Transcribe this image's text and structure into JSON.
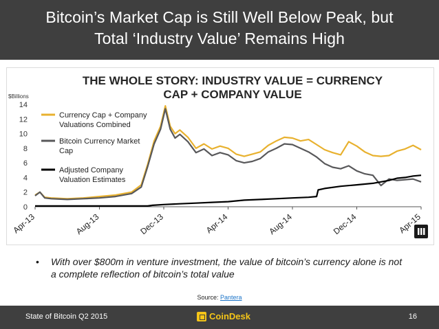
{
  "slide": {
    "title_line1": "Bitcoin’s Market Cap is Still Well Below Peak, but",
    "title_line2": "Total ‘Industry Value’ Remains High",
    "bullet": "With over $800m in venture investment, the value of bitcoin’s currency alone is not a complete reflection of bitcoin’s total value",
    "source_label": "Source:",
    "source_link": "Pantera",
    "footer_left": "State of Bitcoin Q2 2015",
    "footer_brand": "CoinDesk",
    "page_number": "16",
    "watermark": "Pantera logo"
  },
  "chart_data": {
    "type": "line",
    "title_line1": "THE WHOLE STORY: INDUSTRY VALUE = CURRENCY",
    "title_line2": "CAP + COMPANY VALUE",
    "ylabel": "$Billions",
    "ylim": [
      0,
      14
    ],
    "yticks": [
      "14",
      "12",
      "10",
      "8",
      "6",
      "4",
      "2",
      "0"
    ],
    "xlim": [
      0,
      24
    ],
    "x_tick_labels": [
      "Apr-13",
      "Aug-13",
      "Dec-13",
      "Apr-14",
      "Aug-14",
      "Dec-14",
      "Apr-15"
    ],
    "x_tick_positions": [
      0,
      4,
      8,
      12,
      16,
      20,
      24
    ],
    "legend": [
      {
        "label_line1": "Currency Cap + Company",
        "label_line2": "Valuations Combined",
        "color": "#e8b12e"
      },
      {
        "label_line1": "Bitcoin Currency Market",
        "label_line2": "Cap",
        "color": "#58585a"
      },
      {
        "label_line1": "Adjusted Company",
        "label_line2": "Valuation Estimates",
        "color": "#000000"
      }
    ],
    "series": [
      {
        "name": "Currency Cap + Company Valuations Combined",
        "color": "#e8b12e",
        "points": [
          [
            0,
            1.6
          ],
          [
            0.3,
            2.0
          ],
          [
            0.6,
            1.3
          ],
          [
            1,
            1.2
          ],
          [
            2,
            1.1
          ],
          [
            3,
            1.2
          ],
          [
            4,
            1.4
          ],
          [
            5,
            1.6
          ],
          [
            6,
            2.0
          ],
          [
            6.6,
            3.0
          ],
          [
            7.0,
            5.8
          ],
          [
            7.4,
            9.0
          ],
          [
            7.8,
            11.0
          ],
          [
            8.1,
            13.8
          ],
          [
            8.4,
            11.0
          ],
          [
            8.7,
            10.0
          ],
          [
            9.0,
            10.5
          ],
          [
            9.5,
            9.5
          ],
          [
            10,
            8.0
          ],
          [
            10.5,
            8.6
          ],
          [
            11,
            7.9
          ],
          [
            11.5,
            8.3
          ],
          [
            12,
            8.0
          ],
          [
            12.5,
            7.2
          ],
          [
            13,
            6.9
          ],
          [
            13.5,
            7.2
          ],
          [
            14,
            7.5
          ],
          [
            14.5,
            8.4
          ],
          [
            15,
            9.0
          ],
          [
            15.5,
            9.5
          ],
          [
            16,
            9.4
          ],
          [
            16.5,
            9.0
          ],
          [
            17,
            9.2
          ],
          [
            17.5,
            8.5
          ],
          [
            18,
            7.8
          ],
          [
            18.5,
            7.4
          ],
          [
            19,
            7.1
          ],
          [
            19.5,
            8.9
          ],
          [
            20,
            8.3
          ],
          [
            20.5,
            7.5
          ],
          [
            21,
            7.0
          ],
          [
            21.5,
            6.9
          ],
          [
            22,
            7.0
          ],
          [
            22.5,
            7.6
          ],
          [
            23,
            7.9
          ],
          [
            23.5,
            8.4
          ],
          [
            24,
            7.8
          ]
        ]
      },
      {
        "name": "Bitcoin Currency Market Cap",
        "color": "#58585a",
        "points": [
          [
            0,
            1.5
          ],
          [
            0.3,
            2.0
          ],
          [
            0.6,
            1.2
          ],
          [
            1,
            1.1
          ],
          [
            2,
            1.0
          ],
          [
            3,
            1.1
          ],
          [
            4,
            1.2
          ],
          [
            5,
            1.4
          ],
          [
            6,
            1.8
          ],
          [
            6.6,
            2.7
          ],
          [
            7.0,
            5.5
          ],
          [
            7.4,
            8.6
          ],
          [
            7.8,
            10.6
          ],
          [
            8.1,
            13.4
          ],
          [
            8.4,
            10.6
          ],
          [
            8.7,
            9.4
          ],
          [
            9.0,
            9.9
          ],
          [
            9.5,
            8.9
          ],
          [
            10,
            7.4
          ],
          [
            10.5,
            7.9
          ],
          [
            11,
            7.0
          ],
          [
            11.5,
            7.4
          ],
          [
            12,
            7.1
          ],
          [
            12.5,
            6.3
          ],
          [
            13,
            6.0
          ],
          [
            13.5,
            6.2
          ],
          [
            14,
            6.6
          ],
          [
            14.5,
            7.5
          ],
          [
            15,
            8.0
          ],
          [
            15.5,
            8.6
          ],
          [
            16,
            8.5
          ],
          [
            16.5,
            8.0
          ],
          [
            17,
            7.5
          ],
          [
            17.5,
            6.8
          ],
          [
            18,
            5.9
          ],
          [
            18.5,
            5.4
          ],
          [
            19,
            5.2
          ],
          [
            19.5,
            5.6
          ],
          [
            20,
            4.9
          ],
          [
            20.5,
            4.5
          ],
          [
            21,
            4.3
          ],
          [
            21.5,
            2.9
          ],
          [
            22,
            3.8
          ],
          [
            22.5,
            3.6
          ],
          [
            23,
            3.7
          ],
          [
            23.5,
            3.8
          ],
          [
            24,
            3.4
          ]
        ]
      },
      {
        "name": "Adjusted Company Valuation Estimates",
        "color": "#000000",
        "points": [
          [
            0,
            0.1
          ],
          [
            3,
            0.1
          ],
          [
            6,
            0.1
          ],
          [
            7,
            0.1
          ],
          [
            7.3,
            0.2
          ],
          [
            8,
            0.3
          ],
          [
            9,
            0.4
          ],
          [
            10,
            0.5
          ],
          [
            11,
            0.6
          ],
          [
            12,
            0.7
          ],
          [
            13,
            0.9
          ],
          [
            14,
            1.0
          ],
          [
            15,
            1.1
          ],
          [
            16,
            1.2
          ],
          [
            17,
            1.3
          ],
          [
            17.5,
            1.4
          ],
          [
            17.6,
            2.3
          ],
          [
            18,
            2.5
          ],
          [
            19,
            2.8
          ],
          [
            20,
            3.0
          ],
          [
            20.5,
            3.1
          ],
          [
            21,
            3.2
          ],
          [
            21.5,
            3.4
          ],
          [
            22,
            3.6
          ],
          [
            22.5,
            3.9
          ],
          [
            23,
            4.0
          ],
          [
            23.5,
            4.2
          ],
          [
            24,
            4.3
          ]
        ]
      }
    ]
  }
}
